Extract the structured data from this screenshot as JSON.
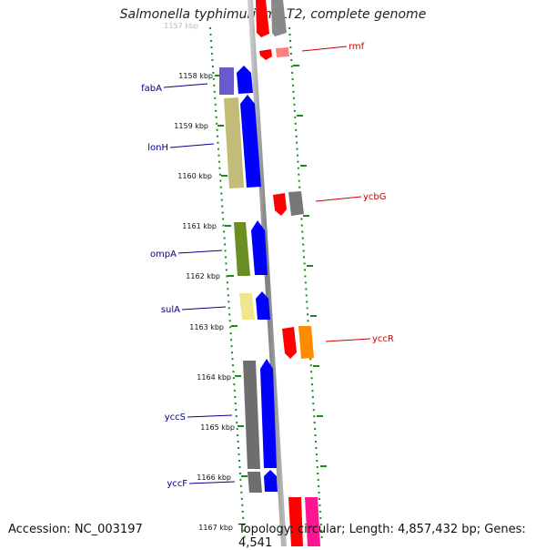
{
  "title": "Salmonella typhimurium LT2, complete genome",
  "footer": {
    "accession": "Accession: NC_003197",
    "summary": "Topology: circular; Length: 4,857,432 bp; Genes: 4,541"
  },
  "scale_labels": [
    {
      "text": "1157 kbp",
      "kb": 1157
    },
    {
      "text": "1158 kbp",
      "kb": 1158
    },
    {
      "text": "1159 kbp",
      "kb": 1159
    },
    {
      "text": "1160 kbp",
      "kb": 1160
    },
    {
      "text": "1161 kbp",
      "kb": 1161
    },
    {
      "text": "1162 kbp",
      "kb": 1162
    },
    {
      "text": "1163 kbp",
      "kb": 1163
    },
    {
      "text": "1164 kbp",
      "kb": 1164
    },
    {
      "text": "1165 kbp",
      "kb": 1165
    },
    {
      "text": "1166 kbp",
      "kb": 1166
    },
    {
      "text": "1167 kbp",
      "kb": 1167
    }
  ],
  "genes_left": [
    {
      "name": "fabA",
      "label": "fabA",
      "color": "#6a5acd"
    },
    {
      "name": "lonH",
      "label": "lonH",
      "color": "#c2bc78"
    },
    {
      "name": "ompA",
      "label": "ompA",
      "color": "#6b8e23"
    },
    {
      "name": "sulA",
      "label": "sulA",
      "color": "#f0e68c"
    },
    {
      "name": "yccS",
      "label": "yccS",
      "color": "#6e6e6e"
    },
    {
      "name": "yccF",
      "label": "yccF",
      "color": "#6e6e6e"
    }
  ],
  "genes_right": [
    {
      "name": "rmf",
      "label": "rmf",
      "color": "#ff0000"
    },
    {
      "name": "ycbG",
      "label": "ycbG",
      "color": "#ff0000"
    },
    {
      "name": "yccR",
      "label": "yccR",
      "color": "#ff0000"
    }
  ],
  "colors": {
    "forward_strand": "#0000ff",
    "reverse_gray": "#777777",
    "orange": "#ff8c00",
    "magenta": "#ff1493",
    "backbone": "#999999",
    "ticks": "#1a8a1a",
    "label_left": "#00008b",
    "label_right": "#cc0000"
  }
}
